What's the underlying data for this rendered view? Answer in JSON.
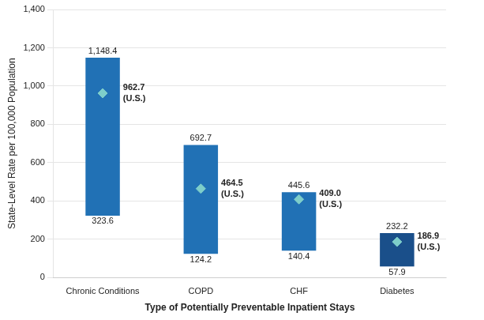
{
  "chart_data": {
    "type": "bar",
    "xlabel": "Type of Potentially Preventable Inpatient Stays",
    "ylabel": "State-Level Rate per 100,000 Population",
    "categories": [
      "Chronic Conditions",
      "COPD",
      "CHF",
      "Diabetes"
    ],
    "series": [
      {
        "type": "bar",
        "bottoms": [
          323.6,
          124.2,
          140.4,
          57.9
        ],
        "values": [
          1148.4,
          692.7,
          445.6,
          232.2
        ],
        "value_labels": [
          "1,148.4",
          "692.7",
          "445.6",
          "232.2"
        ],
        "colors": [
          "#2171B5",
          "#2171B5",
          "#2171B5",
          "#1A4F8A"
        ]
      },
      {
        "type": "scatter",
        "values": [
          962.7,
          464.5,
          409.0,
          186.9
        ],
        "value_labels": [
          "962.7\n(U.S.)",
          "464.5\n(U.S.)",
          "409.0\n(U.S.)",
          "186.9\n(U.S.)"
        ],
        "color": "#7ECECA",
        "marker": "diamond"
      }
    ],
    "ylim": [
      0,
      1400
    ],
    "yticks": [
      0,
      200,
      400,
      600,
      800,
      {
        "value": 1000,
        "label": "1,000"
      },
      {
        "value": 1200,
        "label": "1,200"
      },
      {
        "value": 1400,
        "label": "1,400"
      }
    ],
    "grid": "y",
    "data_labels": true
  }
}
